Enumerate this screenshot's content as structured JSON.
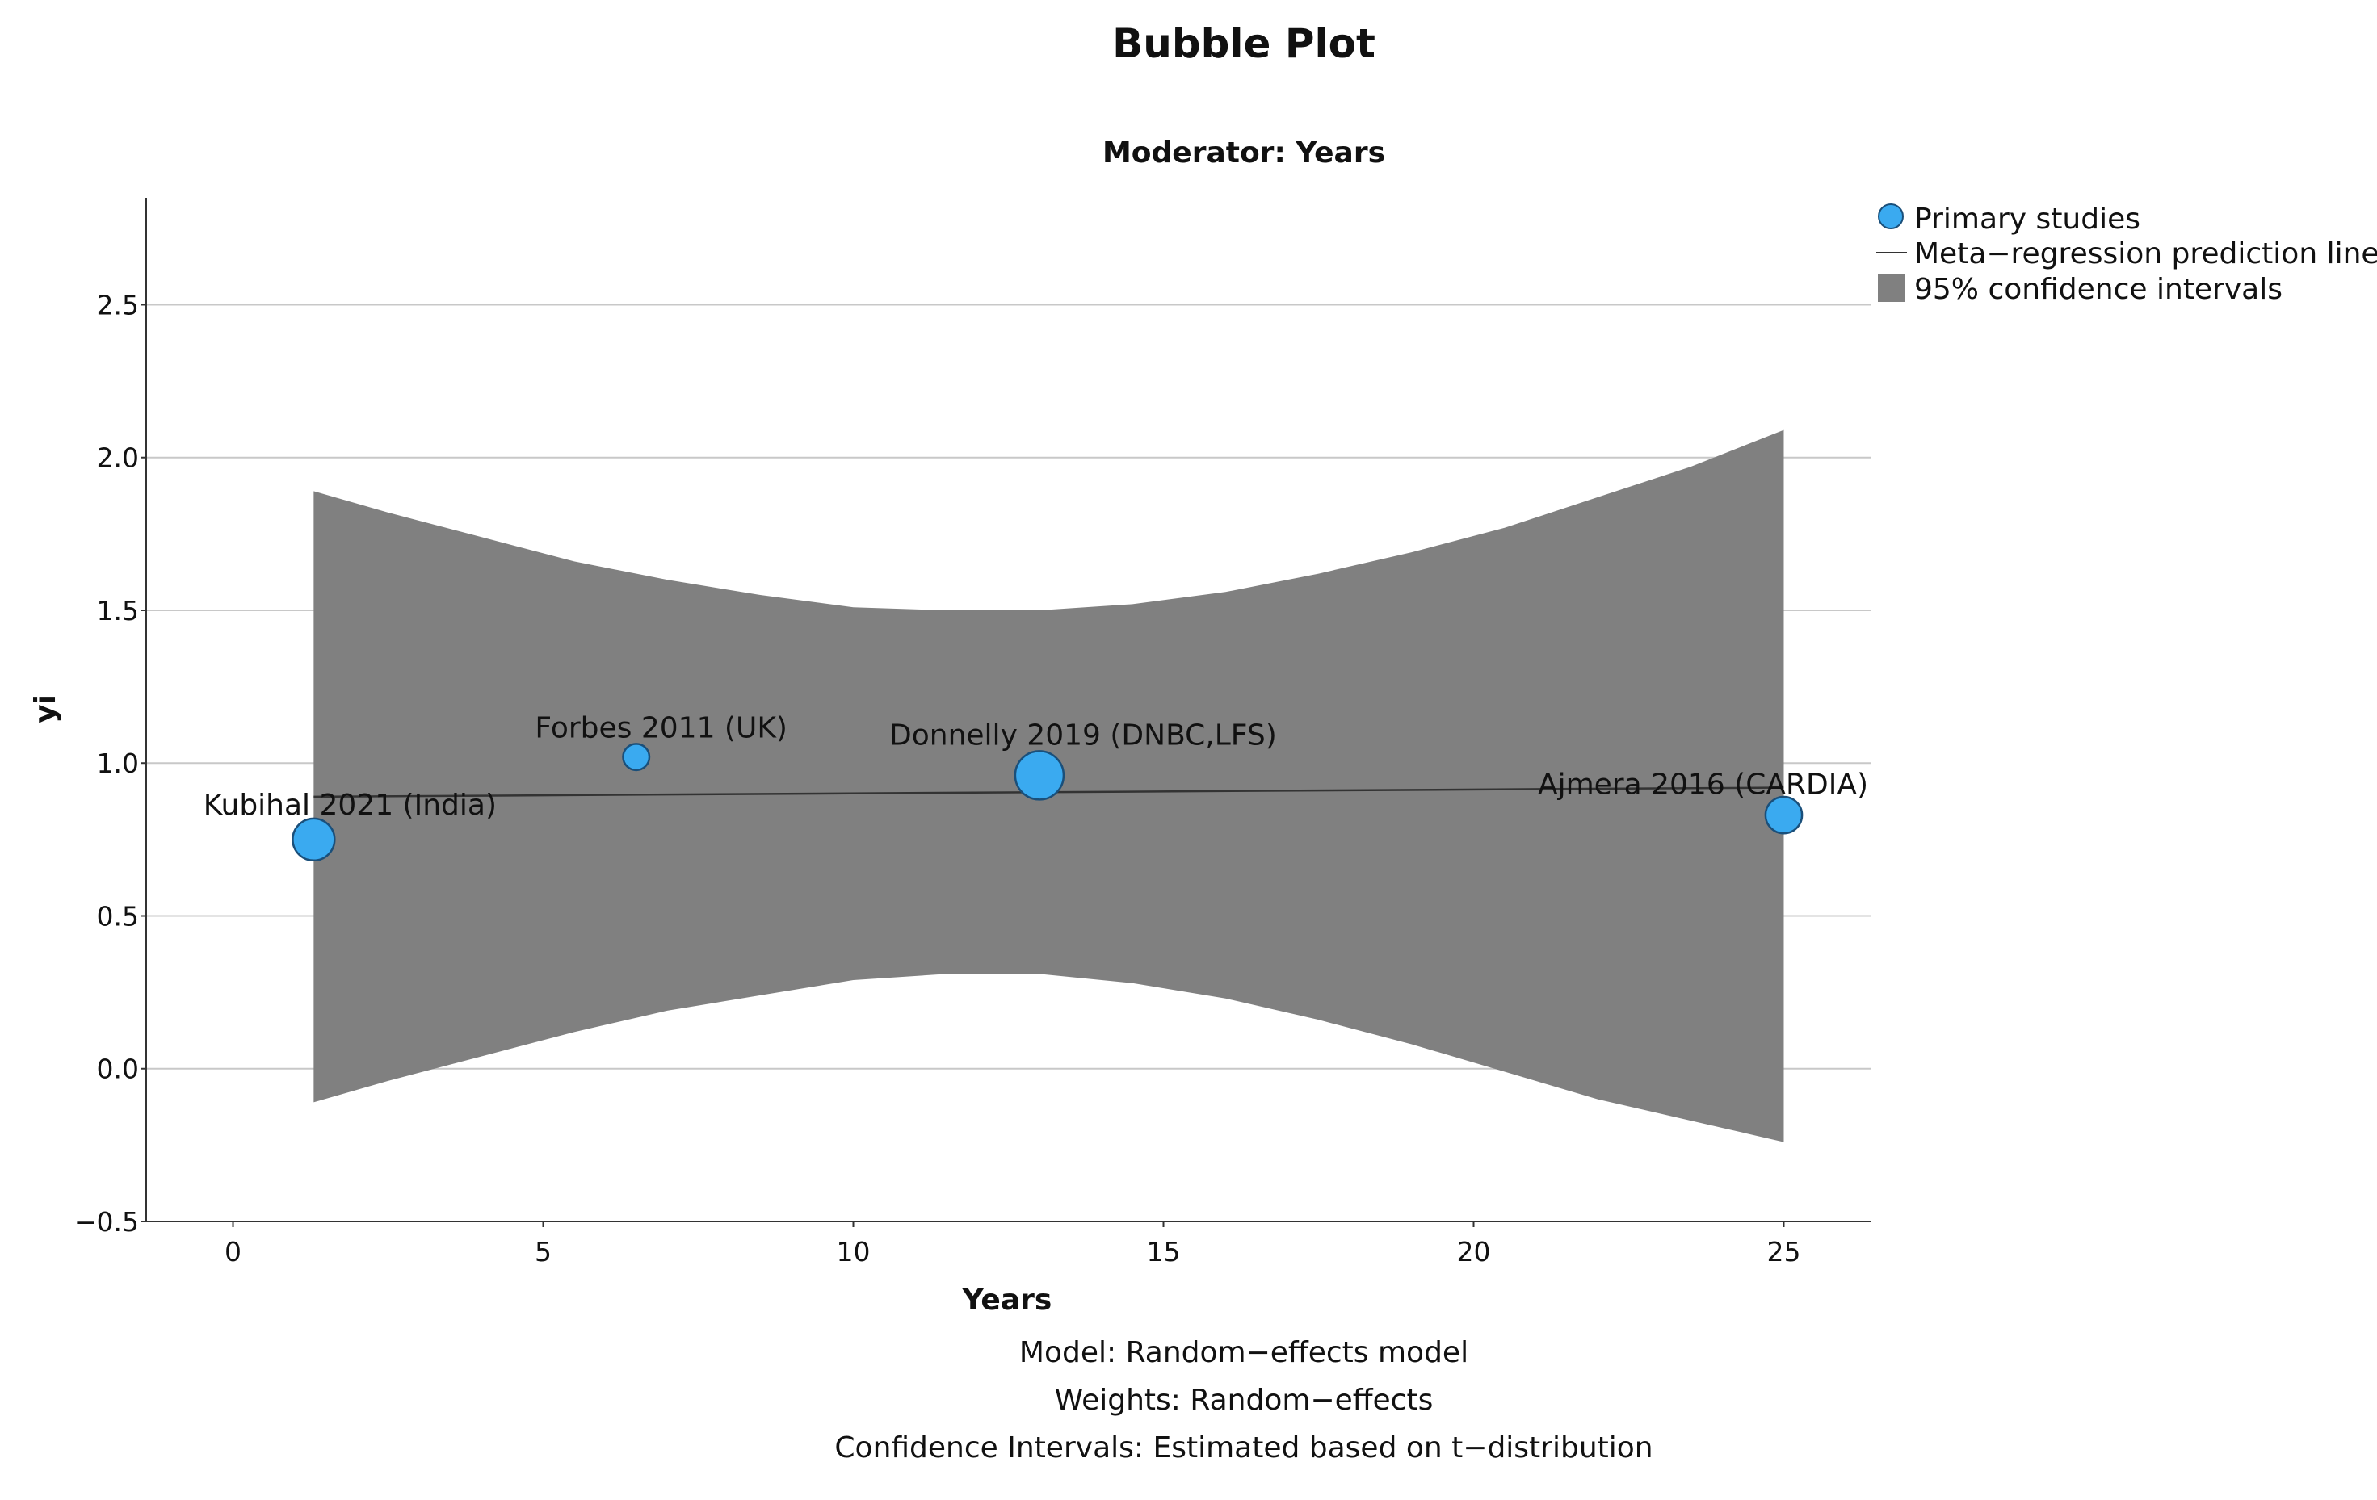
{
  "chart_data": {
    "type": "scatter",
    "title": "Bubble Plot",
    "subtitle": "Moderator: Years",
    "xlabel": "Years",
    "ylabel": "yi",
    "xlim": [
      -1.4,
      26.4
    ],
    "ylim": [
      -0.5,
      2.85
    ],
    "x_ticks": [
      0,
      5,
      10,
      15,
      20,
      25
    ],
    "y_ticks": [
      -0.5,
      0.0,
      0.5,
      1.0,
      1.5,
      2.0,
      2.5
    ],
    "x_tick_labels": [
      "0",
      "5",
      "10",
      "15",
      "20",
      "25"
    ],
    "y_tick_labels": [
      "−0.5",
      "0.0",
      "0.5",
      "1.0",
      "1.5",
      "2.0",
      "2.5"
    ],
    "grid": "horizontal",
    "legend_position": "top-right",
    "legend": [
      {
        "label": "Primary studies",
        "kind": "point",
        "color": "#3aaaf0"
      },
      {
        "label": "Meta−regression prediction line",
        "kind": "line",
        "color": "#333333"
      },
      {
        "label": "95% confidence intervals",
        "kind": "band",
        "color": "#808080"
      }
    ],
    "points": [
      {
        "label": "Kubihal 2021 (India)",
        "x": 1.3,
        "y": 0.75,
        "weight": 0.65
      },
      {
        "label": "Forbes 2011 (UK)",
        "x": 6.5,
        "y": 1.02,
        "weight": 0.12
      },
      {
        "label": "Donnelly 2019 (DNBC,LFS)",
        "x": 13.0,
        "y": 0.96,
        "weight": 1.0
      },
      {
        "label": "Ajmera 2016 (CARDIA)",
        "x": 25.0,
        "y": 0.83,
        "weight": 0.42
      }
    ],
    "prediction_line": {
      "x": [
        1.3,
        25.0
      ],
      "y": [
        0.89,
        0.92
      ]
    },
    "confidence_band": {
      "x": [
        1.3,
        2.5,
        4.0,
        5.5,
        7.0,
        8.5,
        10.0,
        11.5,
        13.0,
        14.5,
        16.0,
        17.5,
        19.0,
        20.5,
        22.0,
        23.5,
        25.0
      ],
      "upper": [
        1.89,
        1.82,
        1.74,
        1.66,
        1.6,
        1.55,
        1.51,
        1.5,
        1.5,
        1.52,
        1.56,
        1.62,
        1.69,
        1.77,
        1.87,
        1.97,
        2.09
      ],
      "lower": [
        -0.11,
        -0.04,
        0.04,
        0.12,
        0.19,
        0.24,
        0.29,
        0.31,
        0.31,
        0.28,
        0.23,
        0.16,
        0.08,
        -0.01,
        -0.1,
        -0.17,
        -0.24
      ]
    },
    "colors": {
      "bubble": "#3aaaf0",
      "bubble_stroke": "#1a4f7a",
      "band": "#808080",
      "line": "#333333",
      "grid": "#c8c8c8"
    }
  },
  "footnotes": [
    "Model: Random−effects model",
    "Weights: Random−effects",
    "Confidence Intervals: Estimated based on t−distribution"
  ]
}
